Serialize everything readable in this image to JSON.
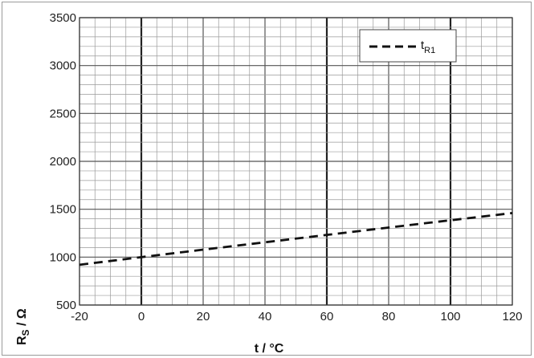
{
  "chart_data": {
    "type": "line",
    "title": "",
    "xlabel": "t / °C",
    "ylabel_main": "R",
    "ylabel_sub": "S",
    "ylabel_unit": " / Ω",
    "xlim": [
      -20,
      120
    ],
    "ylim": [
      500,
      3500
    ],
    "x_ticks": [
      -20,
      0,
      20,
      40,
      60,
      80,
      100,
      120
    ],
    "y_ticks": [
      500,
      1000,
      1500,
      2000,
      2500,
      3000,
      3500
    ],
    "x_bold_lines": [
      0,
      60,
      100
    ],
    "grid": "on",
    "legend_position": "top-right",
    "series": [
      {
        "name_main": "t",
        "name_sub": "R1",
        "style": "dashed",
        "color": "#111111",
        "x": [
          -20,
          0,
          20,
          40,
          60,
          80,
          100,
          120
        ],
        "y": [
          920,
          1000,
          1078,
          1155,
          1232,
          1309,
          1385,
          1460
        ]
      }
    ]
  }
}
